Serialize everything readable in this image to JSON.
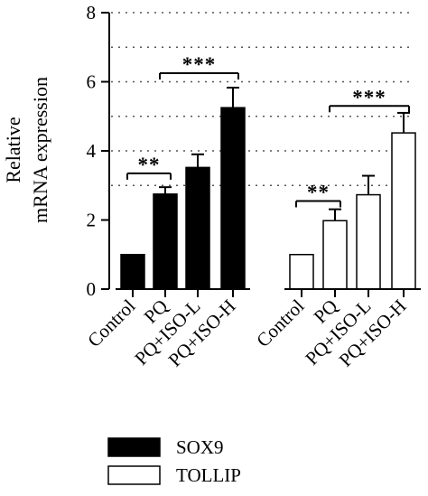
{
  "chart_data": {
    "type": "bar",
    "ylabel": [
      "Relative",
      "mRNA expression"
    ],
    "ylim": [
      0,
      8
    ],
    "yticks": [
      0,
      2,
      4,
      6,
      8
    ],
    "grid": "dotted horizontal lines at 1-unit steps on the upper part",
    "groups": [
      {
        "series": "SOX9",
        "categories": [
          "Control",
          "PQ",
          "PQ+ISO-L",
          "PQ+ISO-H"
        ],
        "values": [
          1.0,
          2.75,
          3.52,
          5.25
        ],
        "errors": [
          0.0,
          0.2,
          0.38,
          0.58
        ],
        "comparisons": [
          {
            "from": 0,
            "to": 1,
            "label": "**",
            "y": 3.35
          },
          {
            "from": 1,
            "to": 3,
            "label": "***",
            "y": 6.25
          }
        ]
      },
      {
        "series": "TOLLIP",
        "categories": [
          "Control",
          "PQ",
          "PQ+ISO-L",
          "PQ+ISO-H"
        ],
        "values": [
          1.0,
          1.98,
          2.73,
          4.52
        ],
        "errors": [
          0.0,
          0.33,
          0.55,
          0.58
        ],
        "comparisons": [
          {
            "from": 0,
            "to": 1,
            "label": "**",
            "y": 2.55
          },
          {
            "from": 1,
            "to": 3,
            "label": "***",
            "y": 5.3
          }
        ]
      }
    ],
    "legend": {
      "position": "bottom",
      "entries": [
        {
          "name": "SOX9",
          "fill": "#000000"
        },
        {
          "name": "TOLLIP",
          "fill": "#ffffff"
        }
      ]
    }
  }
}
